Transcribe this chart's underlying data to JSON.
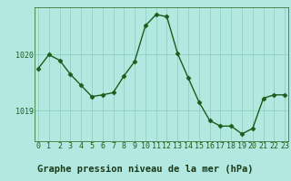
{
  "x": [
    0,
    1,
    2,
    3,
    4,
    5,
    6,
    7,
    8,
    9,
    10,
    11,
    12,
    13,
    14,
    15,
    16,
    17,
    18,
    19,
    20,
    21,
    22,
    23
  ],
  "y": [
    1019.75,
    1020.0,
    1019.9,
    1019.65,
    1019.45,
    1019.25,
    1019.28,
    1019.32,
    1019.62,
    1019.88,
    1020.52,
    1020.72,
    1020.68,
    1020.02,
    1019.58,
    1019.15,
    1018.82,
    1018.72,
    1018.72,
    1018.58,
    1018.68,
    1019.22,
    1019.28,
    1019.28
  ],
  "line_color": "#1a5c1a",
  "marker": "D",
  "marker_size": 2.5,
  "bg_color": "#b3e8e0",
  "plot_bg_color": "#b3e8e0",
  "label_bg_color": "#6ab36a",
  "grid_color": "#88ccbb",
  "xlabel": "Graphe pression niveau de la mer (hPa)",
  "xlabel_fontsize": 7.5,
  "ylim": [
    1018.45,
    1020.85
  ],
  "yticks": [
    1019,
    1020
  ],
  "xticks": [
    0,
    1,
    2,
    3,
    4,
    5,
    6,
    7,
    8,
    9,
    10,
    11,
    12,
    13,
    14,
    15,
    16,
    17,
    18,
    19,
    20,
    21,
    22,
    23
  ],
  "tick_fontsize": 6.0,
  "line_width": 1.0,
  "figsize": [
    3.2,
    2.0
  ],
  "dpi": 100
}
